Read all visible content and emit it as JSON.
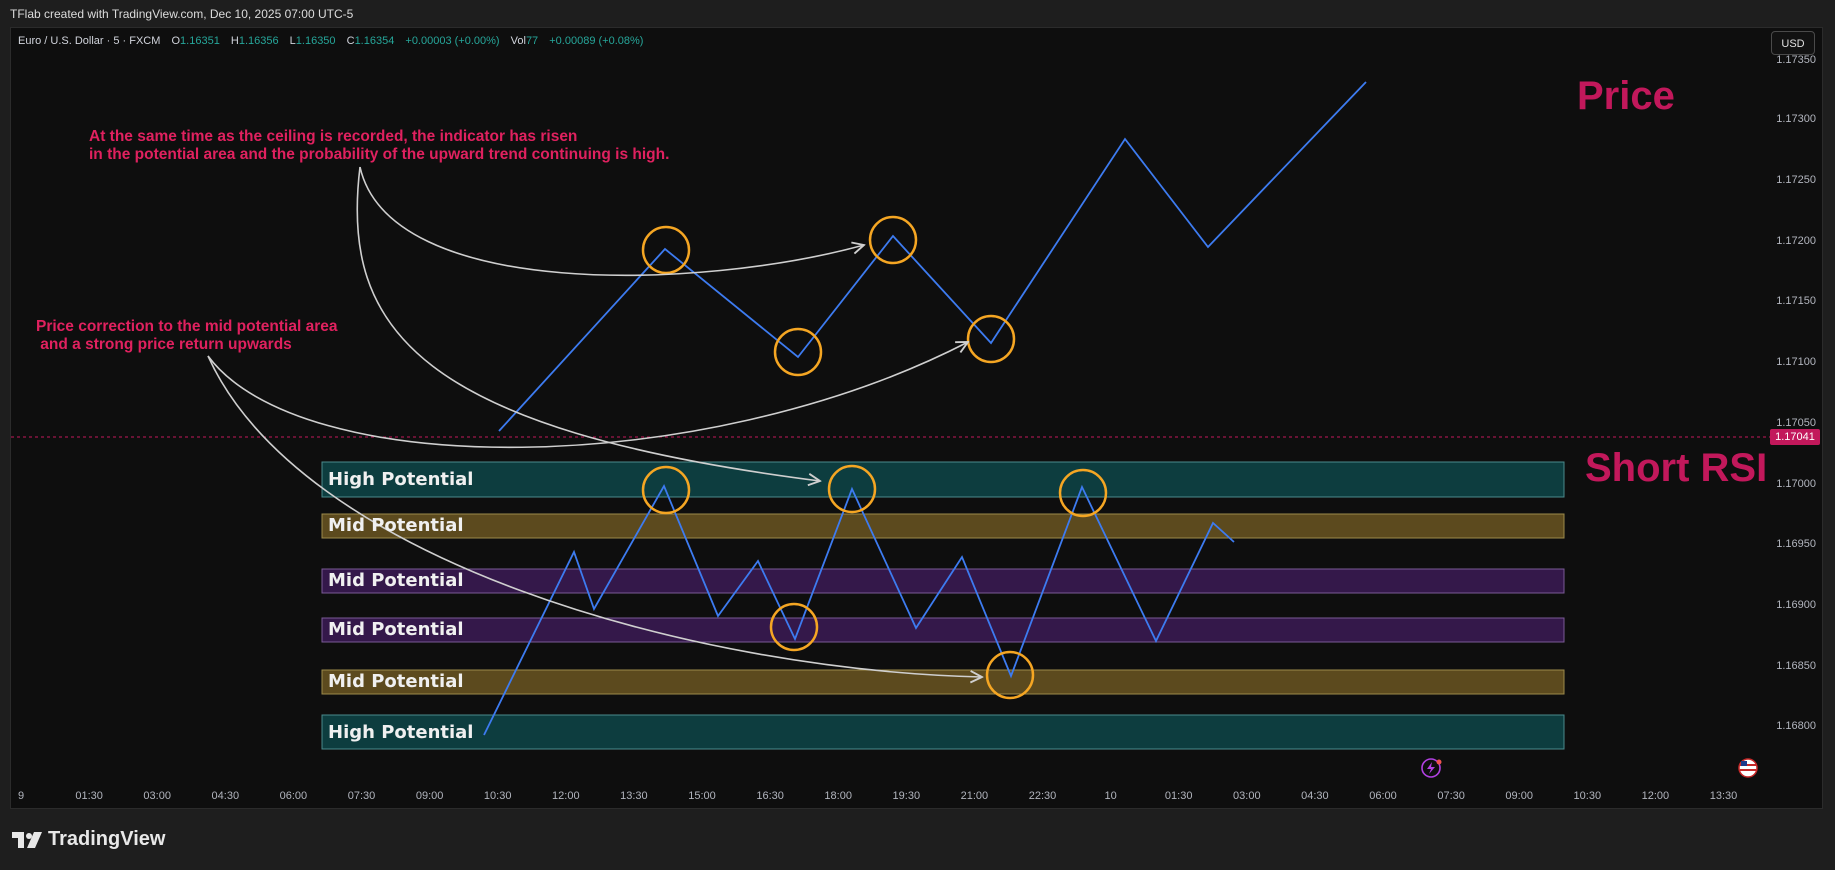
{
  "header": {
    "caption": "TFlab created with TradingView.com, Dec 10, 2025 07:00 UTC-5"
  },
  "legend": {
    "symbol": "Euro / U.S. Dollar · 5 · FXCM",
    "open_label": "O",
    "open": "1.16351",
    "high_label": "H",
    "high": "1.16356",
    "low_label": "L",
    "low": "1.16350",
    "close_label": "C",
    "close": "1.16354",
    "change": "+0.00003 (+0.00%)",
    "vol_label": "Vol",
    "vol": "77",
    "vol_change": "+0.00089 (+0.08%)"
  },
  "currency": "USD",
  "last_price_tag": "1.17041",
  "price_axis": [
    "1.17350",
    "1.17300",
    "1.17250",
    "1.17200",
    "1.17150",
    "1.17100",
    "1.17050",
    "1.17000",
    "1.16950",
    "1.16900",
    "1.16850",
    "1.16800"
  ],
  "time_axis": [
    "9",
    "01:30",
    "03:00",
    "04:30",
    "06:00",
    "07:30",
    "09:00",
    "10:30",
    "12:00",
    "13:30",
    "15:00",
    "16:30",
    "18:00",
    "19:30",
    "21:00",
    "22:30",
    "10",
    "01:30",
    "03:00",
    "04:30",
    "06:00",
    "07:30",
    "09:00",
    "10:30",
    "12:00",
    "13:30"
  ],
  "annotations": {
    "note_top": "At the same time as the ceiling is recorded, the indicator has risen\nin the potential area and the probability of the upward trend continuing is high.",
    "note_left": "Price correction to the mid potential area\n and a strong price return upwards",
    "price_label": "Price",
    "rsi_label": "Short RSI"
  },
  "zones": [
    {
      "label": "High Potential",
      "kind": "high"
    },
    {
      "label": "Mid Potential",
      "kind": "mid-gold"
    },
    {
      "label": "Mid Potential",
      "kind": "mid-purple"
    },
    {
      "label": "Mid Potential",
      "kind": "mid-purple"
    },
    {
      "label": "Mid Potential",
      "kind": "mid-gold"
    },
    {
      "label": "High Potential",
      "kind": "high"
    }
  ],
  "colors": {
    "line": "#3d7bf0",
    "circle": "#f5a623",
    "annotation": "#e0215f",
    "arrow": "#cfcfcf",
    "zone_high": "#0d3d3f",
    "zone_mid_gold": "#5c4a1e",
    "zone_mid_purple": "#34184a"
  },
  "icons": {
    "flash": "flash-icon",
    "flag": "us-flag-icon",
    "logo": "tradingview-logo-icon"
  },
  "footer": {
    "brand": "TradingView"
  }
}
